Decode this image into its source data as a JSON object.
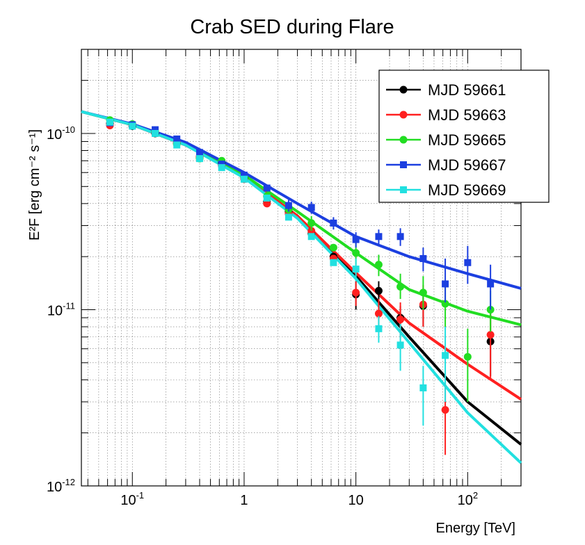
{
  "chart_data": {
    "type": "scatter",
    "title": "Crab SED during Flare",
    "xlabel": "Energy [TeV]",
    "ylabel": "E²F [erg cm⁻² s⁻¹]",
    "xscale": "log",
    "yscale": "log",
    "xlim": [
      0.035,
      300
    ],
    "ylim": [
      1e-12,
      3e-10
    ],
    "x_tick_labels": [
      {
        "value": 0.1,
        "base": "10",
        "exp": "-1"
      },
      {
        "value": 1,
        "base": "1",
        "exp": ""
      },
      {
        "value": 10,
        "base": "10",
        "exp": ""
      },
      {
        "value": 100,
        "base": "10",
        "exp": "2"
      }
    ],
    "y_tick_labels": [
      {
        "value": 1e-12,
        "base": "10",
        "exp": "-12"
      },
      {
        "value": 1e-11,
        "base": "10",
        "exp": "-11"
      },
      {
        "value": 1e-10,
        "base": "10",
        "exp": "-10"
      }
    ],
    "grid": true,
    "legend_position": "top-right",
    "series": [
      {
        "name": "MJD 59661",
        "color": "#000000",
        "marker": "circle",
        "points": [
          [
            0.063,
            1.14e-10,
            null,
            null
          ],
          [
            0.1,
            1.1e-10,
            null,
            null
          ],
          [
            0.16,
            1e-10,
            null,
            null
          ],
          [
            0.25,
            8.8e-11,
            null,
            null
          ],
          [
            0.4,
            7.3e-11,
            null,
            null
          ],
          [
            0.63,
            6.8e-11,
            null,
            null
          ],
          [
            1.0,
            5.6e-11,
            null,
            null
          ],
          [
            1.6,
            4.1e-11,
            null,
            null
          ],
          [
            2.5,
            3.6e-11,
            null,
            null
          ],
          [
            4.0,
            2.7e-11,
            null,
            null
          ],
          [
            6.3,
            2e-11,
            null,
            null
          ],
          [
            10,
            1.22e-11,
            1e-11,
            1.45e-11
          ],
          [
            16,
            1.28e-11,
            1.08e-11,
            1.45e-11
          ],
          [
            25,
            9e-12,
            7.5e-12,
            1.05e-11
          ],
          [
            40,
            1.05e-11,
            8e-12,
            1.3e-11
          ],
          [
            160,
            6.6e-12,
            4.2e-12,
            1e-11
          ]
        ],
        "curve": [
          [
            0.035,
            1.33e-10
          ],
          [
            0.1,
            1.12e-10
          ],
          [
            0.3,
            8.6e-11
          ],
          [
            1,
            5.7e-11
          ],
          [
            3,
            3.4e-11
          ],
          [
            10,
            1.55e-11
          ],
          [
            30,
            7e-12
          ],
          [
            100,
            3e-12
          ],
          [
            300,
            1.72e-12
          ]
        ]
      },
      {
        "name": "MJD 59663",
        "color": "#ff2020",
        "marker": "circle",
        "points": [
          [
            0.063,
            1.11e-10,
            null,
            null
          ],
          [
            0.1,
            1.12e-10,
            null,
            null
          ],
          [
            0.16,
            1.02e-10,
            null,
            null
          ],
          [
            0.25,
            8.9e-11,
            null,
            null
          ],
          [
            0.4,
            7.4e-11,
            null,
            null
          ],
          [
            0.63,
            6.6e-11,
            null,
            null
          ],
          [
            1.0,
            5.5e-11,
            null,
            null
          ],
          [
            1.6,
            4e-11,
            null,
            null
          ],
          [
            2.5,
            3.5e-11,
            null,
            null
          ],
          [
            4.0,
            2.8e-11,
            2.5e-11,
            3.1e-11
          ],
          [
            6.3,
            1.95e-11,
            null,
            null
          ],
          [
            10,
            1.25e-11,
            1.05e-11,
            1.45e-11
          ],
          [
            16,
            9.5e-12,
            7.8e-12,
            1.15e-11
          ],
          [
            25,
            8.8e-12,
            7e-12,
            1.1e-11
          ],
          [
            40,
            1.07e-11,
            8e-12,
            1.38e-11
          ],
          [
            63,
            2.7e-12,
            1.5e-12,
            3.8e-12
          ],
          [
            160,
            7.2e-12,
            4e-12,
            1e-11
          ]
        ],
        "curve": [
          [
            0.035,
            1.33e-10
          ],
          [
            0.1,
            1.12e-10
          ],
          [
            0.3,
            8.6e-11
          ],
          [
            1,
            5.7e-11
          ],
          [
            3,
            3.4e-11
          ],
          [
            10,
            1.62e-11
          ],
          [
            30,
            8.4e-12
          ],
          [
            100,
            4.9e-12
          ],
          [
            300,
            3.1e-12
          ]
        ]
      },
      {
        "name": "MJD 59665",
        "color": "#22dd22",
        "marker": "circle",
        "points": [
          [
            0.063,
            1.19e-10,
            null,
            null
          ],
          [
            0.1,
            1.13e-10,
            null,
            null
          ],
          [
            0.16,
            1.03e-10,
            null,
            null
          ],
          [
            0.25,
            8.7e-11,
            null,
            null
          ],
          [
            0.4,
            7.2e-11,
            null,
            null
          ],
          [
            0.63,
            7e-11,
            null,
            null
          ],
          [
            1.0,
            5.7e-11,
            null,
            null
          ],
          [
            1.6,
            4.4e-11,
            null,
            null
          ],
          [
            2.5,
            3.7e-11,
            null,
            null
          ],
          [
            4.0,
            3.1e-11,
            2.8e-11,
            3.4e-11
          ],
          [
            6.3,
            2.25e-11,
            null,
            null
          ],
          [
            10,
            2.1e-11,
            1.8e-11,
            2.4e-11
          ],
          [
            16,
            1.8e-11,
            1.55e-11,
            2.05e-11
          ],
          [
            25,
            1.35e-11,
            1.15e-11,
            1.6e-11
          ],
          [
            40,
            1.25e-11,
            1e-11,
            1.55e-11
          ],
          [
            63,
            1.08e-11,
            8e-12,
            1.45e-11
          ],
          [
            100,
            5.4e-12,
            3e-12,
            7.8e-12
          ],
          [
            160,
            1e-11,
            7.5e-12,
            1.28e-11
          ]
        ],
        "curve": [
          [
            0.035,
            1.33e-10
          ],
          [
            0.1,
            1.12e-10
          ],
          [
            0.3,
            8.7e-11
          ],
          [
            1,
            5.8e-11
          ],
          [
            3,
            3.6e-11
          ],
          [
            10,
            2.1e-11
          ],
          [
            30,
            1.3e-11
          ],
          [
            100,
            9.8e-12
          ],
          [
            300,
            8.2e-12
          ]
        ]
      },
      {
        "name": "MJD 59667",
        "color": "#1c3fe0",
        "marker": "square",
        "points": [
          [
            0.063,
            1.15e-10,
            null,
            null
          ],
          [
            0.1,
            1.12e-10,
            null,
            null
          ],
          [
            0.16,
            1.05e-10,
            null,
            null
          ],
          [
            0.25,
            9.3e-11,
            null,
            null
          ],
          [
            0.4,
            7.8e-11,
            null,
            null
          ],
          [
            0.63,
            6.7e-11,
            null,
            null
          ],
          [
            1.0,
            5.8e-11,
            null,
            null
          ],
          [
            1.6,
            4.9e-11,
            null,
            null
          ],
          [
            2.5,
            3.9e-11,
            3.6e-11,
            4.2e-11
          ],
          [
            4.0,
            3.8e-11,
            3.5e-11,
            4.1e-11
          ],
          [
            6.3,
            3.1e-11,
            2.85e-11,
            3.35e-11
          ],
          [
            10,
            2.5e-11,
            2.25e-11,
            2.75e-11
          ],
          [
            16,
            2.6e-11,
            2.35e-11,
            2.85e-11
          ],
          [
            25,
            2.6e-11,
            2.3e-11,
            2.9e-11
          ],
          [
            40,
            1.95e-11,
            1.65e-11,
            2.25e-11
          ],
          [
            63,
            1.4e-11,
            1.1e-11,
            1.95e-11
          ],
          [
            100,
            1.85e-11,
            1.4e-11,
            2.3e-11
          ],
          [
            160,
            1.4e-11,
            1e-11,
            1.8e-11
          ]
        ],
        "curve": [
          [
            0.035,
            1.33e-10
          ],
          [
            0.1,
            1.13e-10
          ],
          [
            0.3,
            8.9e-11
          ],
          [
            1,
            6e-11
          ],
          [
            3,
            4e-11
          ],
          [
            10,
            2.6e-11
          ],
          [
            30,
            2e-11
          ],
          [
            100,
            1.6e-11
          ],
          [
            300,
            1.32e-11
          ]
        ]
      },
      {
        "name": "MJD 59669",
        "color": "#22e0e0",
        "marker": "square",
        "points": [
          [
            0.063,
            1.16e-10,
            null,
            null
          ],
          [
            0.1,
            1.1e-10,
            null,
            null
          ],
          [
            0.16,
            1e-10,
            null,
            null
          ],
          [
            0.25,
            8.6e-11,
            null,
            null
          ],
          [
            0.4,
            7.2e-11,
            null,
            null
          ],
          [
            0.63,
            6.4e-11,
            null,
            null
          ],
          [
            1.0,
            5.5e-11,
            null,
            null
          ],
          [
            1.6,
            4.3e-11,
            null,
            null
          ],
          [
            2.5,
            3.35e-11,
            null,
            null
          ],
          [
            4.0,
            2.6e-11,
            null,
            null
          ],
          [
            6.3,
            1.85e-11,
            null,
            null
          ],
          [
            10,
            1.7e-11,
            1.45e-11,
            1.95e-11
          ],
          [
            16,
            7.8e-12,
            6.5e-12,
            9.2e-12
          ],
          [
            25,
            6.3e-12,
            4.5e-12,
            8.3e-12
          ],
          [
            40,
            3.6e-12,
            2.2e-12,
            4.8e-12
          ],
          [
            63,
            5.5e-12,
            3e-12,
            8e-12
          ]
        ],
        "curve": [
          [
            0.035,
            1.33e-10
          ],
          [
            0.1,
            1.12e-10
          ],
          [
            0.3,
            8.6e-11
          ],
          [
            1,
            5.6e-11
          ],
          [
            3,
            3.3e-11
          ],
          [
            10,
            1.5e-11
          ],
          [
            30,
            6.5e-12
          ],
          [
            100,
            2.6e-12
          ],
          [
            300,
            1.35e-12
          ]
        ]
      }
    ]
  }
}
